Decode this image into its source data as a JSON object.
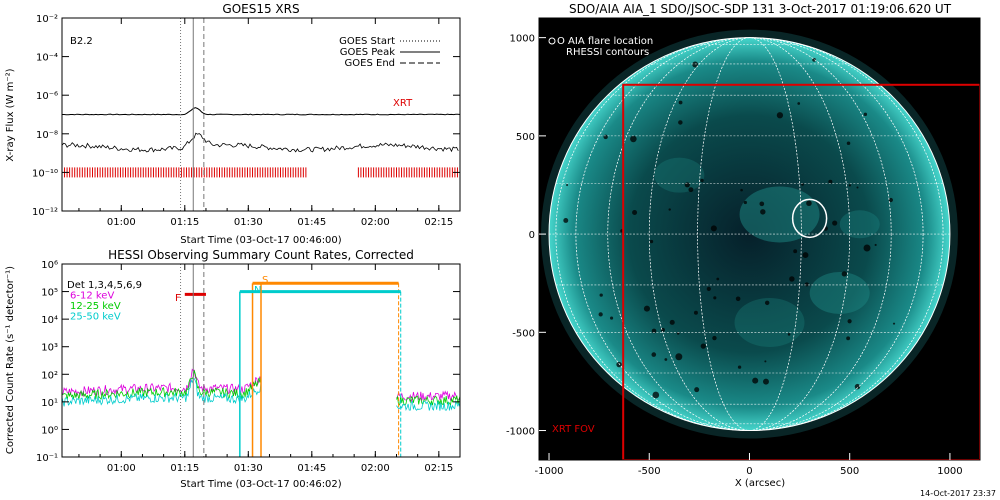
{
  "colors": {
    "background": "#ffffff",
    "axis": "#000000",
    "xrt": "#dd0000",
    "goes_line": "#000000",
    "hessi_det": "#000000",
    "band_6_12": "#dd00dd",
    "band_12_25": "#00cc00",
    "band_25_50": "#00cccc",
    "orange": "#ff8800",
    "cyan_line": "#00cccc",
    "sun_dark": "#04121a",
    "sun_mid": "#0a5a5a",
    "sun_limb": "#2fb8b0",
    "aia_text": "#ffffff"
  },
  "chart_data": [
    {
      "type": "line",
      "title": "GOES15 XRS",
      "ylabel": "X-ray Flux (W m⁻²)",
      "xlabel": "Start Time (03-Oct-17 00:46:00)",
      "class_label": "B2.2",
      "yscale": "log",
      "ylim_exp": [
        -12,
        -2
      ],
      "y_ticks": [
        "10⁻²",
        "10⁻⁴",
        "10⁻⁶",
        "10⁻⁸",
        "10⁻¹⁰",
        "10⁻¹²"
      ],
      "x_ticks": [
        "01:00",
        "01:15",
        "01:30",
        "01:45",
        "02:00",
        "02:15"
      ],
      "x_tick_minutes": [
        60,
        75,
        90,
        105,
        120,
        135
      ],
      "x_range_minutes": [
        46,
        140
      ],
      "legend": [
        {
          "name": "GOES Start",
          "style": "dotted"
        },
        {
          "name": "GOES Peak",
          "style": "solid"
        },
        {
          "name": "GOES End",
          "style": "dashed"
        }
      ],
      "legend_position": "top-right",
      "xrt_label": "XRT",
      "markers_minutes": {
        "start": 74,
        "peak": 77,
        "end": 79.5
      },
      "long_channel_flux_exp": -7.0,
      "short_channel_flux_exp": -8.7,
      "xrt_bar_intervals_minutes": [
        [
          46,
          104
        ],
        [
          116,
          140
        ]
      ],
      "xrt_bar_level_exp": -10.0
    },
    {
      "type": "line",
      "title": "HESSI Observing Summary Count Rates, Corrected",
      "ylabel": "Corrected Count Rate (s⁻¹ detector⁻¹)",
      "xlabel": "Start Time (03-Oct-17 00:46:02)",
      "yscale": "log",
      "ylim_exp": [
        -1,
        6
      ],
      "y_ticks": [
        "10⁶",
        "10⁵",
        "10⁴",
        "10³",
        "10²",
        "10¹",
        "10⁰",
        "10⁻¹"
      ],
      "x_ticks": [
        "01:00",
        "01:15",
        "01:30",
        "01:45",
        "02:00",
        "02:15"
      ],
      "x_tick_minutes": [
        60,
        75,
        90,
        105,
        120,
        135
      ],
      "x_range_minutes": [
        46,
        140
      ],
      "legend": [
        {
          "name": "Det 1,3,4,5,6,9"
        },
        {
          "name": "6-12 keV"
        },
        {
          "name": "12-25 keV"
        },
        {
          "name": "25-50 keV"
        }
      ],
      "legend_position": "top-left",
      "flag_F_label": "F",
      "flag_S_label": "S",
      "flag_N_label": "N",
      "flare_minutes": [
        75,
        78
      ],
      "saa_minutes": [
        91,
        125.5
      ],
      "night_minutes": [
        91.5,
        126
      ],
      "markers_minutes": {
        "start": 74,
        "peak": 77,
        "end": 79.5
      },
      "gap_minutes": [
        93,
        125
      ]
    },
    {
      "type": "image",
      "title": "SDO/AIA AIA_1 SDO/JSOC-SDP 131  3-Oct-2017 01:19:06.620 UT",
      "xlabel": "X (arcsec)",
      "x_ticks": [
        -1000,
        -500,
        0,
        500,
        1000
      ],
      "y_ticks": [
        1000,
        500,
        0,
        -500,
        -1000
      ],
      "xlim": [
        -1050,
        1150
      ],
      "ylim": [
        -1150,
        1100
      ],
      "solar_radius_arcsec": 1000,
      "flare_location_arcsec": [
        300,
        80
      ],
      "flare_label": "O AIA flare location",
      "rhessi_label": "RHESSI contours",
      "xrt_fov_label": "XRT FOV",
      "xrt_fov_arcsec": [
        [
          -630,
          -1150
        ],
        [
          1150,
          760
        ]
      ],
      "timestamp": "14-Oct-2017 23:37"
    }
  ]
}
